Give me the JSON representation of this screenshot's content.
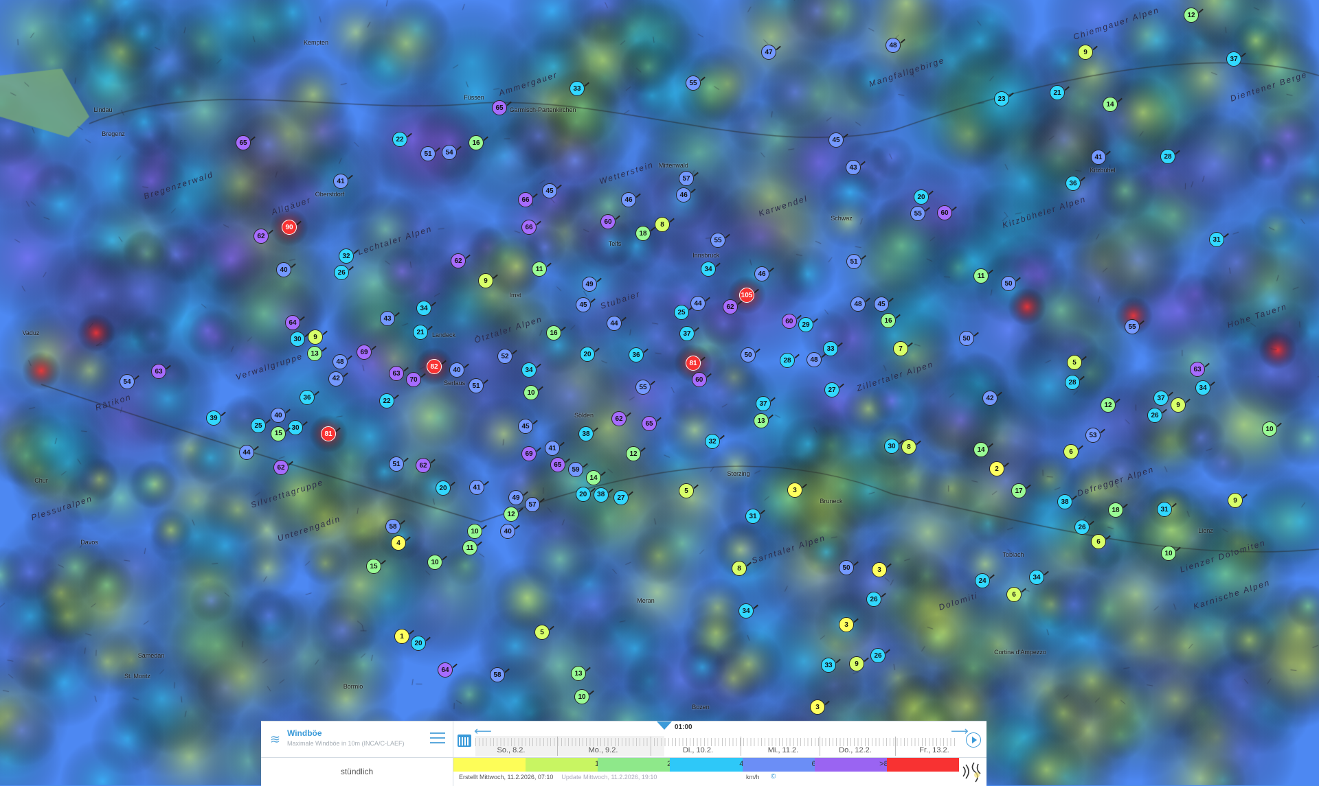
{
  "panel": {
    "title": "Windböe",
    "subtitle": "Maximale Windböe in 10m (INCA/C-LAEF)",
    "frequency": "stündlich",
    "current_time": "01:00",
    "days": [
      "So., 8.2.",
      "Mo., 9.2.",
      "Di., 10.2.",
      "Mi., 11.2.",
      "Do., 12.2.",
      "Fr., 13.2."
    ],
    "created": "Erstellt Mittwoch, 11.2.2026, 07:10",
    "updated": "Update Mittwoch, 11.2.2026, 19:10",
    "unit": "km/h",
    "copyright": "©"
  },
  "legend": {
    "colors": [
      "#fdfd58",
      "#c8f562",
      "#8ee88a",
      "#2ec8f8",
      "#6b8ef6",
      "#9a64f2",
      "#f83232"
    ],
    "labels": [
      "5",
      "10",
      "20",
      "40",
      "60",
      ">80",
      ""
    ]
  },
  "icons": {
    "wind": "wind-icon",
    "menu": "hamburger-menu-icon",
    "calendar": "calendar-icon",
    "play": "play-icon",
    "logo": "geosphere-logo"
  },
  "places": [
    "Bregenz",
    "Lindau",
    "Kempten",
    "Füssen",
    "Garmisch-Partenkirchen",
    "Vaduz",
    "Chur",
    "Davos",
    "Innsbruck",
    "Telfs",
    "Imst",
    "Landeck",
    "Schwaz",
    "Kitzbühel",
    "Lienz",
    "Bozen",
    "Meran",
    "Sterzing",
    "Bruneck",
    "Cortina d'Ampezzo",
    "Toblach",
    "St. Moritz",
    "Bormio",
    "Samedan",
    "Oberstdorf",
    "Serfaus",
    "Sölden",
    "Mittenwald"
  ],
  "ranges": [
    "Bregenzerwald",
    "Allgäuer",
    "Lechtaler Alpen",
    "Wetterstein",
    "Karwendel",
    "Mangfallgebirge",
    "Chiemgauer Alpen",
    "Kitzbüheler Alpen",
    "Ötztaler Alpen",
    "Stubaier",
    "Zillertaler Alpen",
    "Rätikon",
    "Verwallgruppe",
    "Silvrettagruppe",
    "Unterengadin",
    "Sarntaler Alpen",
    "Dolomiti",
    "Defregger Alpen",
    "Lienzer Dolomiten",
    "Karnische Alpen",
    "Hohe Tauern",
    "Plessuralpen",
    "Ammergauer",
    "Dientener Berge"
  ],
  "gust_values": [
    90,
    82,
    81,
    81,
    105,
    62,
    65,
    65,
    33,
    47,
    48,
    9,
    12,
    37,
    21,
    23,
    14,
    41,
    28,
    36,
    31,
    55,
    63,
    5,
    7,
    20,
    60,
    11,
    50,
    50,
    16,
    48,
    27,
    13,
    37,
    60,
    50,
    28,
    46,
    34,
    62,
    55,
    57,
    46,
    46,
    60,
    18,
    8,
    55,
    45,
    66,
    66,
    62,
    11,
    9,
    49,
    45,
    44,
    16,
    20,
    36,
    55,
    37,
    25,
    44,
    52,
    34,
    10,
    51,
    40,
    70,
    63,
    22,
    45,
    41,
    38,
    69,
    65,
    59,
    62,
    65,
    12,
    32,
    14,
    38,
    20,
    27,
    5,
    3,
    31,
    8,
    34,
    50,
    3,
    26,
    3,
    33,
    9,
    26,
    3,
    30,
    8,
    14,
    2,
    17,
    42,
    38,
    26,
    6,
    18,
    31,
    9,
    10,
    10,
    34,
    24,
    6,
    53,
    12,
    26,
    37,
    9,
    34,
    28,
    6,
    64,
    30,
    9,
    13,
    48,
    42,
    69,
    43,
    34,
    21,
    36,
    63,
    54,
    39,
    25,
    40,
    30,
    15,
    44,
    62,
    51,
    62,
    41,
    20,
    49,
    57,
    12,
    40,
    10,
    11,
    58,
    4,
    10,
    15,
    1,
    20,
    5,
    64,
    58,
    13,
    10,
    40,
    32,
    26,
    41,
    22,
    51,
    54,
    16,
    45,
    43,
    55,
    51,
    48,
    29,
    60,
    33,
    45
  ]
}
